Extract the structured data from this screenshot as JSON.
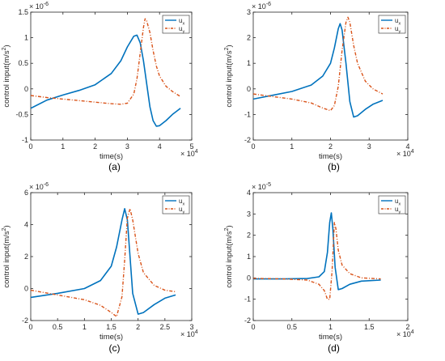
{
  "figure": {
    "captions": [
      "(a)",
      "(b)",
      "(c)",
      "(d)"
    ]
  },
  "chart_data": [
    {
      "type": "line",
      "caption": "(a)",
      "xlabel": "time(s)",
      "ylabel": "control input(m/s",
      "ylabel_sup": "2",
      "ylabel_close": ")",
      "x_exponent": "× 10",
      "x_exponent_power": "4",
      "y_exponent": "× 10",
      "y_exponent_power": "-6",
      "xlim": [
        0,
        5
      ],
      "ylim": [
        -1,
        1.5
      ],
      "xticks": [
        0,
        1,
        2,
        3,
        4,
        5
      ],
      "xtick_labels": [
        "0",
        "1",
        "2",
        "3",
        "4",
        "5"
      ],
      "yticks": [
        -1,
        -0.5,
        0,
        0.5,
        1,
        1.5
      ],
      "ytick_labels": [
        "-1",
        "-0.5",
        "0",
        "0.5",
        "1",
        "1.5"
      ],
      "legend_position": "top-right",
      "series": [
        {
          "name": "u",
          "sub": "x",
          "color": "#0072BD",
          "style": "solid",
          "x": [
            0,
            0.5,
            1.0,
            1.5,
            2.0,
            2.5,
            2.8,
            3.0,
            3.2,
            3.3,
            3.4,
            3.5,
            3.6,
            3.7,
            3.8,
            3.9,
            4.0,
            4.2,
            4.4,
            4.65
          ],
          "y": [
            -0.38,
            -0.22,
            -0.12,
            -0.03,
            0.08,
            0.3,
            0.55,
            0.82,
            1.03,
            1.05,
            0.9,
            0.55,
            0.1,
            -0.35,
            -0.62,
            -0.73,
            -0.72,
            -0.62,
            -0.5,
            -0.38
          ]
        },
        {
          "name": "u",
          "sub": "y",
          "color": "#D95319",
          "style": "dashdot",
          "x": [
            0,
            0.5,
            1.0,
            1.5,
            2.0,
            2.5,
            2.8,
            3.0,
            3.2,
            3.3,
            3.4,
            3.5,
            3.55,
            3.6,
            3.7,
            3.8,
            3.9,
            4.0,
            4.2,
            4.4,
            4.65
          ],
          "y": [
            -0.13,
            -0.17,
            -0.2,
            -0.23,
            -0.26,
            -0.29,
            -0.3,
            -0.28,
            -0.1,
            0.2,
            0.7,
            1.2,
            1.37,
            1.33,
            1.1,
            0.75,
            0.45,
            0.25,
            0.05,
            -0.05,
            -0.15
          ]
        }
      ]
    },
    {
      "type": "line",
      "caption": "(b)",
      "xlabel": "time(s)",
      "ylabel": "control input(m/s",
      "ylabel_sup": "2",
      "ylabel_close": ")",
      "x_exponent": "× 10",
      "x_exponent_power": "4",
      "y_exponent": "× 10",
      "y_exponent_power": "-6",
      "xlim": [
        0,
        4
      ],
      "ylim": [
        -2,
        3
      ],
      "xticks": [
        0,
        1,
        2,
        3,
        4
      ],
      "xtick_labels": [
        "0",
        "1",
        "2",
        "3",
        "4"
      ],
      "yticks": [
        -2,
        -1,
        0,
        1,
        2,
        3
      ],
      "ytick_labels": [
        "-2",
        "-1",
        "0",
        "1",
        "2",
        "3"
      ],
      "legend_position": "top-right",
      "series": [
        {
          "name": "u",
          "sub": "x",
          "color": "#0072BD",
          "style": "solid",
          "x": [
            0,
            0.5,
            1.0,
            1.5,
            1.8,
            2.0,
            2.1,
            2.2,
            2.25,
            2.3,
            2.4,
            2.5,
            2.6,
            2.7,
            2.9,
            3.1,
            3.35
          ],
          "y": [
            -0.4,
            -0.25,
            -0.1,
            0.15,
            0.5,
            1.0,
            1.6,
            2.35,
            2.55,
            2.3,
            1.0,
            -0.5,
            -1.1,
            -1.05,
            -0.8,
            -0.6,
            -0.45
          ]
        },
        {
          "name": "u",
          "sub": "y",
          "color": "#D95319",
          "style": "dashdot",
          "x": [
            0,
            0.5,
            1.0,
            1.5,
            1.8,
            2.0,
            2.1,
            2.2,
            2.3,
            2.4,
            2.45,
            2.5,
            2.6,
            2.7,
            2.9,
            3.1,
            3.35
          ],
          "y": [
            -0.2,
            -0.3,
            -0.4,
            -0.55,
            -0.75,
            -0.85,
            -0.65,
            0.1,
            1.5,
            2.6,
            2.8,
            2.6,
            1.7,
            1.0,
            0.3,
            0.0,
            -0.2
          ]
        }
      ]
    },
    {
      "type": "line",
      "caption": "(c)",
      "xlabel": "time(s)",
      "ylabel": "control input(m/s",
      "ylabel_sup": "2",
      "ylabel_close": ")",
      "x_exponent": "× 10",
      "x_exponent_power": "4",
      "y_exponent": "× 10",
      "y_exponent_power": "-6",
      "xlim": [
        0,
        3
      ],
      "ylim": [
        -2,
        6
      ],
      "xticks": [
        0,
        0.5,
        1,
        1.5,
        2,
        2.5,
        3
      ],
      "xtick_labels": [
        "0",
        "0.5",
        "1",
        "1.5",
        "2",
        "2.5",
        "3"
      ],
      "yticks": [
        -2,
        0,
        2,
        4,
        6
      ],
      "ytick_labels": [
        "-2",
        "0",
        "2",
        "4",
        "6"
      ],
      "legend_position": "top-right",
      "series": [
        {
          "name": "u",
          "sub": "x",
          "color": "#0072BD",
          "style": "solid",
          "x": [
            0,
            0.5,
            1.0,
            1.3,
            1.5,
            1.6,
            1.7,
            1.75,
            1.8,
            1.85,
            1.9,
            2.0,
            2.1,
            2.3,
            2.5,
            2.7
          ],
          "y": [
            -0.55,
            -0.3,
            0.0,
            0.5,
            1.4,
            2.6,
            4.3,
            5.0,
            4.3,
            2.0,
            -0.3,
            -1.6,
            -1.5,
            -1.0,
            -0.6,
            -0.4
          ]
        },
        {
          "name": "u",
          "sub": "y",
          "color": "#D95319",
          "style": "dashdot",
          "x": [
            0,
            0.5,
            1.0,
            1.3,
            1.5,
            1.6,
            1.7,
            1.75,
            1.8,
            1.85,
            1.9,
            2.0,
            2.1,
            2.3,
            2.5,
            2.7
          ],
          "y": [
            -0.1,
            -0.4,
            -0.7,
            -1.05,
            -1.5,
            -1.75,
            -0.5,
            1.8,
            4.4,
            5.0,
            4.3,
            2.2,
            1.0,
            0.2,
            -0.1,
            -0.2
          ]
        }
      ]
    },
    {
      "type": "line",
      "caption": "(d)",
      "xlabel": "time(s)",
      "ylabel": "control input(m/s",
      "ylabel_sup": "2",
      "ylabel_close": ")",
      "x_exponent": "× 10",
      "x_exponent_power": "4",
      "y_exponent": "× 10",
      "y_exponent_power": "-5",
      "xlim": [
        0,
        2
      ],
      "ylim": [
        -2,
        4
      ],
      "xticks": [
        0,
        0.5,
        1,
        1.5,
        2
      ],
      "xtick_labels": [
        "0",
        "0.5",
        "1",
        "1.5",
        "2"
      ],
      "yticks": [
        -2,
        -1,
        0,
        1,
        2,
        3,
        4
      ],
      "ytick_labels": [
        "-2",
        "-1",
        "0",
        "1",
        "2",
        "3",
        "4"
      ],
      "legend_position": "top-right",
      "series": [
        {
          "name": "u",
          "sub": "x",
          "color": "#0072BD",
          "style": "solid",
          "x": [
            0,
            0.4,
            0.7,
            0.85,
            0.92,
            0.96,
            0.99,
            1.01,
            1.03,
            1.06,
            1.1,
            1.15,
            1.25,
            1.4,
            1.65
          ],
          "y": [
            -0.05,
            -0.05,
            -0.03,
            0.05,
            0.3,
            1.2,
            2.6,
            3.05,
            2.3,
            0.5,
            -0.55,
            -0.5,
            -0.3,
            -0.15,
            -0.1
          ]
        },
        {
          "name": "u",
          "sub": "y",
          "color": "#D95319",
          "style": "dashdot",
          "x": [
            0,
            0.4,
            0.7,
            0.85,
            0.92,
            0.96,
            0.99,
            1.02,
            1.05,
            1.07,
            1.1,
            1.15,
            1.25,
            1.4,
            1.65
          ],
          "y": [
            -0.02,
            -0.05,
            -0.1,
            -0.3,
            -0.6,
            -1.0,
            -1.0,
            0.3,
            2.6,
            2.3,
            1.3,
            0.6,
            0.2,
            0.0,
            -0.05
          ]
        }
      ]
    }
  ]
}
